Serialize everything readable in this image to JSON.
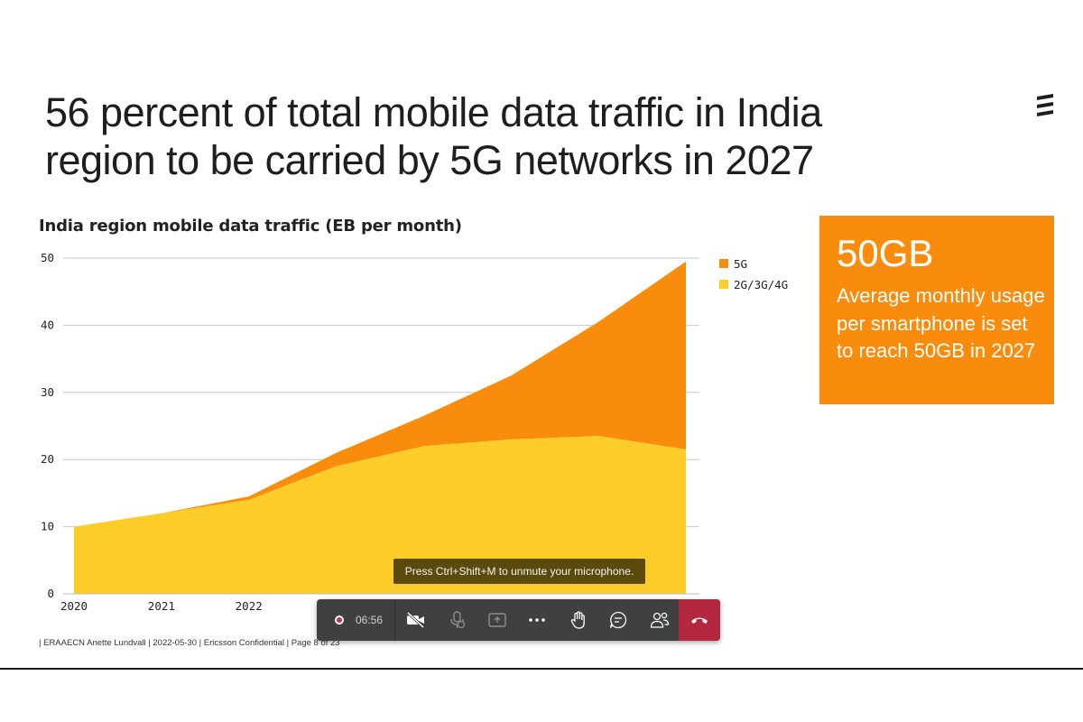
{
  "slide": {
    "title": "56 percent of total mobile data traffic in India region to be carried by 5G networks in 2027",
    "chart_title": "India region mobile data traffic (EB per month)",
    "callout": {
      "value": "50GB",
      "text": "Average monthly usage per smartphone is set to reach 50GB in 2027"
    },
    "footer": "| ERAAECN Anette Lundvall  |  2022-05-30  |  Ericsson Confidential  |  Page 8 of 23"
  },
  "meeting": {
    "toast": "Press Ctrl+Shift+M to unmute your microphone.",
    "timer": "06:56",
    "icons": [
      "record-icon",
      "camera-off-icon",
      "mic-off-icon",
      "share-icon",
      "more-icon",
      "raise-hand-icon",
      "chat-icon",
      "people-icon",
      "hang-up-icon"
    ]
  },
  "colors": {
    "5g": "#fa8c0d",
    "legacy": "#fccd28",
    "callout_bg": "#fa8c0d",
    "hangup": "#b3273f"
  },
  "chart_data": {
    "type": "area",
    "title": "India region mobile data traffic (EB per month)",
    "ylabel": "",
    "xlabel": "",
    "x": [
      2020,
      2021,
      2022,
      2023,
      2024,
      2025,
      2026,
      2027
    ],
    "x_tick_labels": [
      "2020",
      "2021",
      "2022",
      "",
      "",
      "",
      "",
      ""
    ],
    "stacked": true,
    "ylim": [
      0,
      50
    ],
    "yticks": [
      0,
      10,
      20,
      30,
      40,
      50
    ],
    "grid": true,
    "legend_position": "top-right",
    "series": [
      {
        "name": "5G",
        "values": [
          0,
          0,
          0.5,
          2,
          4.5,
          9.5,
          17,
          28
        ]
      },
      {
        "name": "2G/3G/4G",
        "values": [
          10,
          12,
          14,
          19,
          22,
          23,
          23.5,
          21.5
        ]
      }
    ]
  }
}
